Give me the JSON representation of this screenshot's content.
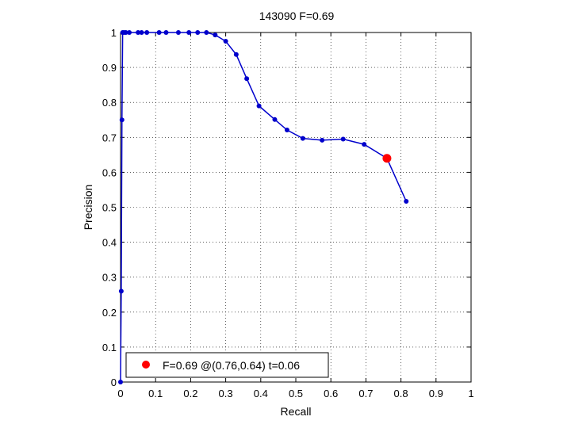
{
  "chart_data": {
    "type": "line",
    "title": "143090 F=0.69",
    "xlabel": "Recall",
    "ylabel": "Precision",
    "xlim": [
      0,
      1
    ],
    "ylim": [
      0,
      1
    ],
    "xticks": [
      "0",
      "0.1",
      "0.2",
      "0.3",
      "0.4",
      "0.5",
      "0.6",
      "0.7",
      "0.8",
      "0.9",
      "1"
    ],
    "yticks": [
      "0",
      "0.1",
      "0.2",
      "0.3",
      "0.4",
      "0.5",
      "0.6",
      "0.7",
      "0.8",
      "0.9",
      "1"
    ],
    "grid": true,
    "colors": {
      "series": "#0000cc",
      "highlight": "#ff0000"
    },
    "series": [
      {
        "x": [
          0.0,
          0.002,
          0.004,
          0.006,
          0.01,
          0.015,
          0.025,
          0.05,
          0.06,
          0.075,
          0.11,
          0.13,
          0.165,
          0.195,
          0.22,
          0.245,
          0.27,
          0.3,
          0.33,
          0.36,
          0.395,
          0.44,
          0.475,
          0.52,
          0.575,
          0.635,
          0.695,
          0.76,
          0.815
        ],
        "y": [
          0.0,
          0.26,
          0.75,
          1.0,
          1.0,
          1.0,
          1.0,
          1.0,
          1.0,
          1.0,
          1.0,
          1.0,
          1.0,
          1.0,
          1.0,
          1.0,
          0.993,
          0.975,
          0.937,
          0.868,
          0.79,
          0.751,
          0.721,
          0.697,
          0.692,
          0.695,
          0.68,
          0.64,
          0.517
        ]
      }
    ],
    "highlight_point": {
      "x": 0.76,
      "y": 0.64
    },
    "legend": {
      "position": "bottom-left",
      "text": "F=0.69 @(0.76,0.64) t=0.06"
    }
  }
}
